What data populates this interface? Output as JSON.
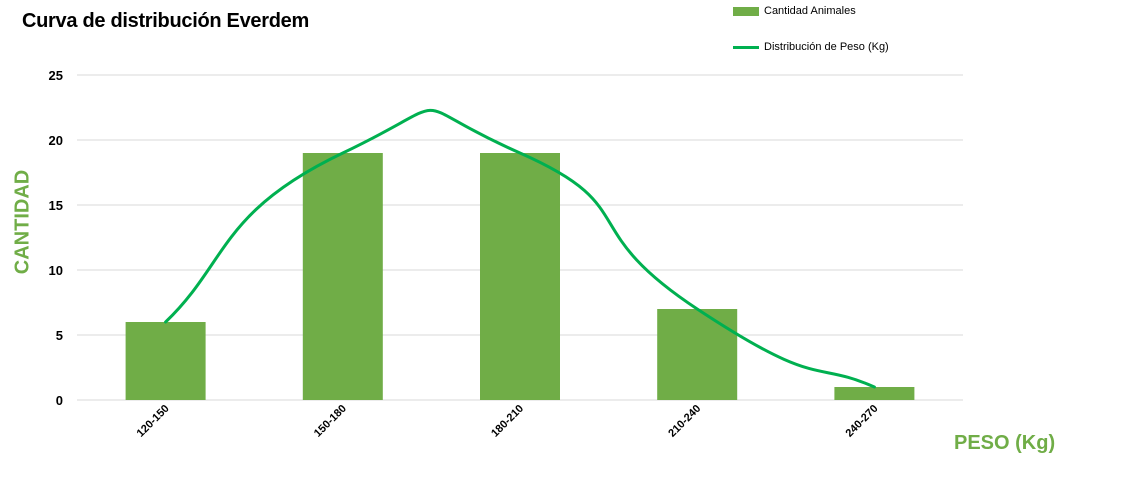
{
  "chart_data": {
    "type": "bar",
    "title": "Curva de distribución Everdem",
    "xlabel": "PESO (Kg)",
    "ylabel": "CANTIDAD",
    "categories": [
      "120-150",
      "150-180",
      "180-210",
      "210-240",
      "240-270"
    ],
    "series": [
      {
        "name": "Cantidad Animales",
        "type": "bar",
        "values": [
          6,
          19,
          19,
          7,
          1
        ],
        "color": "#70AD47"
      },
      {
        "name": "Distribución de Peso (Kg)",
        "type": "line",
        "smooth": true,
        "values": [
          6,
          19,
          19,
          7,
          1
        ],
        "color": "#00B050"
      }
    ],
    "ylim": [
      0,
      25
    ],
    "yticks": [
      0,
      5,
      10,
      15,
      20,
      25
    ],
    "grid": true,
    "legend_position": "top-right",
    "colors": {
      "axis_label": "#70AD47",
      "gridline": "#D9D9D9"
    }
  }
}
